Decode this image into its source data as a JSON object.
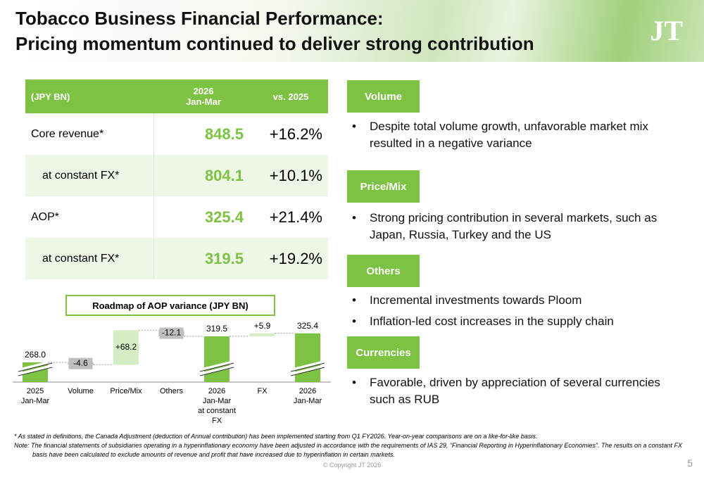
{
  "header": {
    "title_lines": [
      "Tobacco Business Financial Performance:",
      "Pricing momentum continued to deliver strong contribution"
    ],
    "logo": "JT"
  },
  "table": {
    "columns": [
      "(JPY BN)",
      "2026\nJan-Mar",
      "vs. 2025"
    ],
    "rows": [
      [
        "Core revenue*",
        "848.5",
        "+16.2%"
      ],
      [
        "at constant FX*",
        "804.1",
        "+10.1%"
      ],
      [
        "AOP*",
        "325.4",
        "+21.4%"
      ],
      [
        "at constant FX*",
        "319.5",
        "+19.2%"
      ]
    ]
  },
  "sections": [
    {
      "title": "Volume",
      "bullets": [
        "Despite total volume growth, unfavorable market mix resulted in a negative variance"
      ]
    },
    {
      "title": "Price/Mix",
      "bullets": [
        "Strong pricing contribution in several markets, such as Japan, Russia, Turkey and the US"
      ]
    },
    {
      "title": "Others",
      "bullets": [
        "Incremental investments towards Ploom",
        "Inflation-led cost increases in the supply chain"
      ]
    },
    {
      "title": "Currencies",
      "bullets": [
        "Favorable, driven by appreciation of several currencies such as RUB"
      ]
    }
  ],
  "chart_data": {
    "type": "waterfall",
    "title": "Roadmap of AOP variance (JPY BN)",
    "categories": [
      "2025\nJan-Mar",
      "Volume",
      "Price/Mix",
      "Others",
      "2026\nJan-Mar\nat constant\nFX",
      "FX",
      "2026\nJan-Mar"
    ],
    "values": [
      268.0,
      -4.6,
      68.2,
      -12.1,
      319.5,
      5.9,
      325.4
    ],
    "value_labels": [
      "268.0",
      "-4.6",
      "+68.2",
      "-12.1",
      "319.5",
      "+5.9",
      "325.4"
    ],
    "measures": [
      "total",
      "delta",
      "delta",
      "delta",
      "total",
      "delta",
      "total"
    ],
    "colors": {
      "total": "#7dc242",
      "increase": "#d5edc4",
      "decrease": "#bfbfbf"
    }
  },
  "footnotes": [
    "* As stated in definitions, the Canada Adjustment (deduction of Annual contribution) has been implemented starting from Q1 FY2026. Year-on-year comparisons are on a like-for-like basis.",
    "Note: The financial statements of subsidiaries operating in a hyperinflationary economy have been adjusted in accordance with the requirements of IAS 29, “Financial Reporting in Hyperinflationary Economies”. The results on a constant FX basis have been calculated to exclude amounts of revenue and profit that have increased due to hyperinflation in certain markets."
  ],
  "copyright": "© Copyright JT 2026",
  "page_number": "5"
}
